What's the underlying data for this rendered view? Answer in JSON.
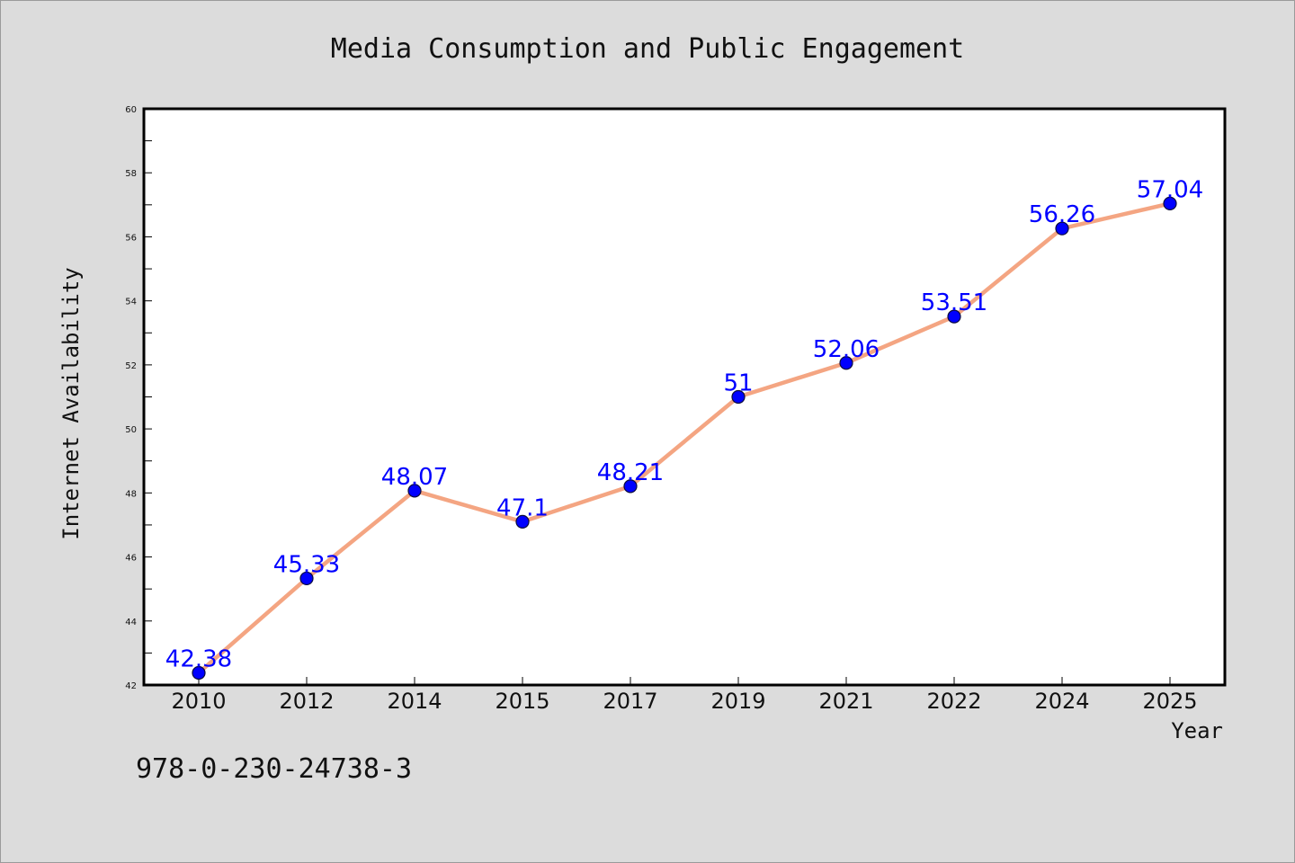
{
  "chart_data": {
    "type": "line",
    "title": "Media Consumption and Public Engagement",
    "xlabel": "Year",
    "ylabel": "Internet Availability",
    "categories": [
      "2010",
      "2012",
      "2014",
      "2015",
      "2017",
      "2019",
      "2021",
      "2022",
      "2024",
      "2025"
    ],
    "series": [
      {
        "values": [
          42.38,
          45.33,
          48.07,
          47.1,
          48.21,
          51,
          52.06,
          53.51,
          56.26,
          57.04
        ]
      }
    ],
    "data_labels": [
      "42.38",
      "45.33",
      "48.07",
      "47.1",
      "48.21",
      "51",
      "52.06",
      "53.51",
      "56.26",
      "57.04"
    ],
    "ylim": [
      42,
      60
    ],
    "yticks": [
      "42",
      "44",
      "46",
      "48",
      "50",
      "52",
      "54",
      "56",
      "58",
      "60"
    ],
    "grid": false,
    "legend": false,
    "colors": {
      "line": "#f4a582",
      "marker": "#0000ff",
      "marker_edge": "#0b0b3d",
      "labels": "#0000ff",
      "background": "#dcdcdc",
      "plot_background": "#ffffff"
    },
    "footer_text": "978-0-230-24738-3"
  }
}
